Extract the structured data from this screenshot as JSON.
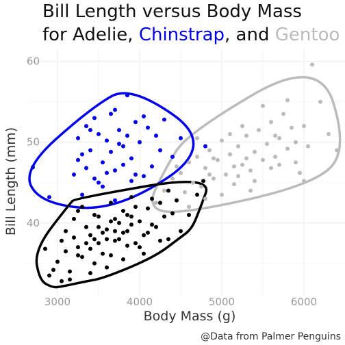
{
  "chart_data": {
    "type": "scatter",
    "title_line1": "Bill Length versus Body Mass",
    "title_line2_prefix": "for Adelie, ",
    "title_line2_mid": ", and ",
    "xlabel": "Body Mass (g)",
    "ylabel": "Bill Length (mm)",
    "caption": "@Data from Palmer Penguins",
    "xlim": [
      2600,
      6500
    ],
    "ylim": [
      31,
      61.5
    ],
    "x_ticks": [
      3000,
      4000,
      5000,
      6000
    ],
    "y_ticks": [
      40,
      50,
      60
    ],
    "grid": true,
    "series": [
      {
        "name": "Adelie",
        "color": "#000000",
        "points": [
          [
            2900,
            33.5
          ],
          [
            3000,
            35.2
          ],
          [
            3050,
            32.8
          ],
          [
            3100,
            36.5
          ],
          [
            3150,
            34.0
          ],
          [
            3200,
            38.2
          ],
          [
            3250,
            37.0
          ],
          [
            3300,
            35.8
          ],
          [
            3350,
            39.5
          ],
          [
            3400,
            36.8
          ],
          [
            3450,
            41.0
          ],
          [
            3500,
            37.5
          ],
          [
            3550,
            38.8
          ],
          [
            3600,
            39.2
          ],
          [
            3650,
            36.0
          ],
          [
            3700,
            40.5
          ],
          [
            3750,
            38.0
          ],
          [
            3800,
            41.5
          ],
          [
            3850,
            37.2
          ],
          [
            3900,
            39.8
          ],
          [
            3950,
            42.0
          ],
          [
            4000,
            40.2
          ],
          [
            4050,
            38.5
          ],
          [
            4100,
            41.8
          ],
          [
            4150,
            43.0
          ],
          [
            4200,
            39.5
          ],
          [
            4250,
            42.5
          ],
          [
            4300,
            40.8
          ],
          [
            4350,
            44.0
          ],
          [
            4400,
            41.2
          ],
          [
            4450,
            42.8
          ],
          [
            4500,
            39.0
          ],
          [
            4600,
            41.0
          ],
          [
            4700,
            43.5
          ],
          [
            4775,
            45.2
          ],
          [
            3200,
            40.5
          ],
          [
            3300,
            42.0
          ],
          [
            3400,
            33.8
          ],
          [
            3500,
            40.8
          ],
          [
            3600,
            34.5
          ],
          [
            3700,
            37.8
          ],
          [
            3800,
            35.5
          ],
          [
            3900,
            43.2
          ],
          [
            4000,
            37.0
          ],
          [
            3100,
            39.0
          ],
          [
            3250,
            41.5
          ],
          [
            3450,
            35.0
          ],
          [
            3650,
            42.5
          ],
          [
            3850,
            39.0
          ],
          [
            4050,
            36.2
          ],
          [
            2850,
            36.8
          ],
          [
            2950,
            34.2
          ],
          [
            3150,
            33.0
          ],
          [
            3350,
            37.5
          ],
          [
            3550,
            36.2
          ],
          [
            3750,
            40.0
          ],
          [
            3950,
            37.5
          ],
          [
            4150,
            39.8
          ],
          [
            4350,
            38.0
          ],
          [
            3700,
            39.0
          ],
          [
            3600,
            38.0
          ],
          [
            3500,
            39.5
          ],
          [
            3400,
            38.5
          ],
          [
            3800,
            38.8
          ],
          [
            3900,
            40.8
          ],
          [
            4100,
            38.8
          ],
          [
            4250,
            37.8
          ],
          [
            3050,
            37.8
          ],
          [
            3250,
            36.0
          ],
          [
            3450,
            38.0
          ],
          [
            3650,
            40.2
          ],
          [
            3850,
            41.0
          ]
        ]
      },
      {
        "name": "Chinstrap",
        "color": "#0000ee",
        "points": [
          [
            2700,
            46.9
          ],
          [
            2900,
            43.2
          ],
          [
            3200,
            46.0
          ],
          [
            3250,
            50.5
          ],
          [
            3300,
            48.5
          ],
          [
            3350,
            52.0
          ],
          [
            3400,
            49.0
          ],
          [
            3450,
            45.5
          ],
          [
            3500,
            51.0
          ],
          [
            3550,
            47.5
          ],
          [
            3600,
            50.2
          ],
          [
            3650,
            53.5
          ],
          [
            3700,
            46.5
          ],
          [
            3750,
            51.5
          ],
          [
            3800,
            49.5
          ],
          [
            3850,
            55.8
          ],
          [
            3900,
            48.0
          ],
          [
            3950,
            52.5
          ],
          [
            4000,
            50.0
          ],
          [
            4050,
            45.8
          ],
          [
            4100,
            51.8
          ],
          [
            4150,
            47.0
          ],
          [
            4200,
            50.8
          ],
          [
            4250,
            49.0
          ],
          [
            4300,
            52.8
          ],
          [
            4400,
            48.2
          ],
          [
            4500,
            50.5
          ],
          [
            4800,
            49.5
          ],
          [
            3300,
            43.5
          ],
          [
            3400,
            51.5
          ],
          [
            3500,
            45.0
          ],
          [
            3600,
            46.2
          ],
          [
            3700,
            54.0
          ],
          [
            3800,
            47.2
          ],
          [
            3900,
            45.2
          ],
          [
            3650,
            48.8
          ],
          [
            3450,
            53.0
          ],
          [
            3350,
            46.8
          ],
          [
            3550,
            44.5
          ],
          [
            3750,
            49.8
          ],
          [
            3950,
            46.0
          ],
          [
            4050,
            53.2
          ],
          [
            3250,
            47.8
          ],
          [
            3850,
            50.8
          ],
          [
            3700,
            42.8
          ]
        ]
      },
      {
        "name": "Gentoo",
        "color": "#bbbbbb",
        "points": [
          [
            4200,
            42.5
          ],
          [
            4300,
            44.0
          ],
          [
            4400,
            45.5
          ],
          [
            4500,
            46.2
          ],
          [
            4550,
            43.8
          ],
          [
            4600,
            47.5
          ],
          [
            4650,
            45.0
          ],
          [
            4700,
            48.2
          ],
          [
            4750,
            44.5
          ],
          [
            4800,
            46.8
          ],
          [
            4850,
            49.0
          ],
          [
            4900,
            45.5
          ],
          [
            4950,
            47.8
          ],
          [
            5000,
            50.2
          ],
          [
            5050,
            46.0
          ],
          [
            5100,
            48.5
          ],
          [
            5150,
            44.8
          ],
          [
            5200,
            49.5
          ],
          [
            5250,
            47.2
          ],
          [
            5300,
            50.8
          ],
          [
            5350,
            46.5
          ],
          [
            5400,
            48.8
          ],
          [
            5450,
            51.5
          ],
          [
            5500,
            47.8
          ],
          [
            5550,
            49.8
          ],
          [
            5600,
            52.5
          ],
          [
            5650,
            48.2
          ],
          [
            5700,
            50.5
          ],
          [
            5750,
            53.5
          ],
          [
            5800,
            49.2
          ],
          [
            5850,
            51.8
          ],
          [
            5900,
            50.0
          ],
          [
            5950,
            46.2
          ],
          [
            6000,
            52.0
          ],
          [
            6050,
            49.5
          ],
          [
            6100,
            59.6
          ],
          [
            6200,
            55.0
          ],
          [
            6300,
            51.0
          ],
          [
            6400,
            49.0
          ],
          [
            5500,
            54.5
          ],
          [
            5400,
            45.2
          ],
          [
            5200,
            45.8
          ],
          [
            5000,
            43.5
          ],
          [
            4800,
            43.0
          ],
          [
            4600,
            42.0
          ],
          [
            4900,
            48.0
          ],
          [
            5100,
            51.0
          ],
          [
            5300,
            48.0
          ],
          [
            5600,
            46.8
          ],
          [
            5800,
            55.2
          ],
          [
            6000,
            45.2
          ],
          [
            5700,
            47.2
          ],
          [
            4450,
            47.0
          ],
          [
            4700,
            50.5
          ],
          [
            5250,
            52.0
          ],
          [
            5650,
            50.8
          ],
          [
            5900,
            47.5
          ],
          [
            5350,
            44.0
          ],
          [
            4850,
            46.0
          ],
          [
            5150,
            47.0
          ]
        ]
      }
    ]
  }
}
